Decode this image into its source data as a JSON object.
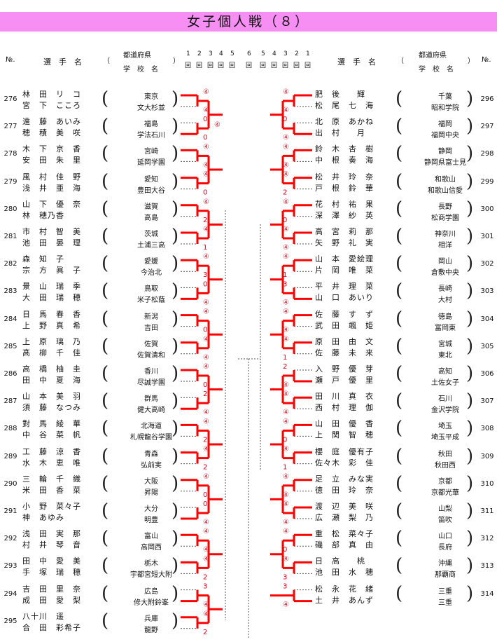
{
  "title": "女子個人戦（８）",
  "header": {
    "no": "№.",
    "name": "選　手　名",
    "paren_open": "（",
    "paren_close": "）",
    "pref": "都道府県",
    "school": "学　校　名",
    "rounds_left": [
      "1",
      "2",
      "3",
      "4",
      "5",
      "6"
    ],
    "rounds_right": [
      "5",
      "4",
      "3",
      "2",
      "1"
    ],
    "round_suffix": "回"
  },
  "left": [
    {
      "no": "276",
      "p1": {
        "name": "林　田　リ　コ",
        "pref": "東京"
      },
      "p2": {
        "name": "宮　下　こころ",
        "school": "文大杉並"
      }
    },
    {
      "no": "277",
      "p1": {
        "name": "遠　藤　あいみ",
        "pref": "福島"
      },
      "p2": {
        "name": "穂　積　美　咲",
        "school": "学法石川"
      }
    },
    {
      "no": "278",
      "p1": {
        "name": "木　下　京　香",
        "pref": "宮崎"
      },
      "p2": {
        "name": "安　田　朱　里",
        "school": "延岡学園"
      }
    },
    {
      "no": "279",
      "p1": {
        "name": "風　村　佳　野",
        "pref": "愛知"
      },
      "p2": {
        "name": "浅　井　亜　海",
        "school": "豊田大谷"
      }
    },
    {
      "no": "280",
      "p1": {
        "name": "山　下　優　奈",
        "pref": "滋賀"
      },
      "p2": {
        "name": "林　穂乃香",
        "school": "高島"
      }
    },
    {
      "no": "281",
      "p1": {
        "name": "市　村　智　美",
        "pref": "茨城"
      },
      "p2": {
        "name": "池　田　晏　理",
        "school": "土浦三高"
      }
    },
    {
      "no": "282",
      "p1": {
        "name": "森　知　子",
        "pref": "愛媛"
      },
      "p2": {
        "name": "宗　方　眞　子",
        "school": "今治北"
      }
    },
    {
      "no": "283",
      "p1": {
        "name": "景　山　瑞　季",
        "pref": "鳥取"
      },
      "p2": {
        "name": "大　田　瑞　穂",
        "school": "米子松蔭"
      }
    },
    {
      "no": "284",
      "p1": {
        "name": "日　馬　春　香",
        "pref": "新潟"
      },
      "p2": {
        "name": "上　野　真　希",
        "school": "吉田"
      }
    },
    {
      "no": "285",
      "p1": {
        "name": "上　原　璃　乃",
        "pref": "佐賀"
      },
      "p2": {
        "name": "髙　柳　千　佳",
        "school": "佐賀清和"
      }
    },
    {
      "no": "286",
      "p1": {
        "name": "高　橋　柚　圭",
        "pref": "香川"
      },
      "p2": {
        "name": "田　中　夏　海",
        "school": "尽誠学園"
      }
    },
    {
      "no": "287",
      "p1": {
        "name": "山　本　美　羽",
        "pref": "群馬"
      },
      "p2": {
        "name": "須　藤　なつみ",
        "school": "健大高崎"
      }
    },
    {
      "no": "288",
      "p1": {
        "name": "對　馬　綾　華",
        "pref": "北海道"
      },
      "p2": {
        "name": "中　谷　菜　帆",
        "school": "札幌龍谷学園"
      }
    },
    {
      "no": "289",
      "p1": {
        "name": "工　藤　涼　香",
        "pref": "青森"
      },
      "p2": {
        "name": "水　木　恵　唯",
        "school": "弘前実"
      }
    },
    {
      "no": "290",
      "p1": {
        "name": "三　輪　千　織",
        "pref": "大阪"
      },
      "p2": {
        "name": "米　田　香　菜",
        "school": "昇陽"
      }
    },
    {
      "no": "291",
      "p1": {
        "name": "小　野　菜々子",
        "pref": "大分"
      },
      "p2": {
        "name": "神　あゆみ",
        "school": "明豊"
      }
    },
    {
      "no": "292",
      "p1": {
        "name": "浅　田　実　那",
        "pref": "富山"
      },
      "p2": {
        "name": "村　井　琴　音",
        "school": "高岡西"
      }
    },
    {
      "no": "293",
      "p1": {
        "name": "田　中　愛　美",
        "pref": "栃木"
      },
      "p2": {
        "name": "手　塚　瑞　穂",
        "school": "宇都宮短大附"
      }
    },
    {
      "no": "294",
      "p1": {
        "name": "吉　田　里　奈",
        "pref": "広島"
      },
      "p2": {
        "name": "成　田　愛　梨",
        "school": "修大附鈴峯"
      }
    },
    {
      "no": "295",
      "p1": {
        "name": "八十川　遥",
        "pref": "兵庫"
      },
      "p2": {
        "name": "合　田　彩希子",
        "school": "龍野"
      }
    }
  ],
  "right": [
    {
      "no": "296",
      "p1": {
        "name": "肥　後　　輝",
        "pref": "千葉"
      },
      "p2": {
        "name": "松　尾　七　海",
        "school": "昭和学院"
      }
    },
    {
      "no": "297",
      "p1": {
        "name": "北　原　あかね",
        "pref": "福岡"
      },
      "p2": {
        "name": "出　村　　月",
        "school": "福岡中央"
      }
    },
    {
      "no": "298",
      "p1": {
        "name": "鈴　木　杏　樹",
        "pref": "静岡"
      },
      "p2": {
        "name": "中　根　奏　海",
        "school": "静岡県富士見"
      }
    },
    {
      "no": "299",
      "p1": {
        "name": "松　井　玲　奈",
        "pref": "和歌山"
      },
      "p2": {
        "name": "戸　根　鈴　華",
        "school": "和歌山信愛"
      }
    },
    {
      "no": "300",
      "p1": {
        "name": "花　村　祐　果",
        "pref": "長野"
      },
      "p2": {
        "name": "深　澤　紗　英",
        "school": "松商学園"
      }
    },
    {
      "no": "301",
      "p1": {
        "name": "高　宮　莉　那",
        "pref": "神奈川"
      },
      "p2": {
        "name": "矢　野　礼　実",
        "school": "相洋"
      }
    },
    {
      "no": "302",
      "p1": {
        "name": "山　本　愛絵理",
        "pref": "岡山"
      },
      "p2": {
        "name": "片　岡　唯　菜",
        "school": "倉敷中央"
      }
    },
    {
      "no": "303",
      "p1": {
        "name": "平　井　理　菜",
        "pref": "長崎"
      },
      "p2": {
        "name": "山　口　あいり",
        "school": "大村"
      }
    },
    {
      "no": "304",
      "p1": {
        "name": "佐　藤　す　ず",
        "pref": "徳島"
      },
      "p2": {
        "name": "武　田　颯　姫",
        "school": "富岡東"
      }
    },
    {
      "no": "305",
      "p1": {
        "name": "原　田　由　文",
        "pref": "宮城"
      },
      "p2": {
        "name": "佐　藤　未　来",
        "school": "東北"
      }
    },
    {
      "no": "306",
      "p1": {
        "name": "入　野　優　芽",
        "pref": "高知"
      },
      "p2": {
        "name": "瀬　戸　優　里",
        "school": "土佐女子"
      }
    },
    {
      "no": "307",
      "p1": {
        "name": "田　川　真　衣",
        "pref": "石川"
      },
      "p2": {
        "name": "西　村　理　伽",
        "school": "金沢学院"
      }
    },
    {
      "no": "308",
      "p1": {
        "name": "山　田　優　香",
        "pref": "埼玉"
      },
      "p2": {
        "name": "上　関　智　穂",
        "school": "埼玉平成"
      }
    },
    {
      "no": "309",
      "p1": {
        "name": "櫻　庭　優有子",
        "pref": "秋田"
      },
      "p2": {
        "name": "佐々木　彩　佳",
        "school": "秋田西"
      }
    },
    {
      "no": "310",
      "p1": {
        "name": "足　立　みな実",
        "pref": "京都"
      },
      "p2": {
        "name": "徳　田　玲　奈",
        "school": "京都光華"
      }
    },
    {
      "no": "311",
      "p1": {
        "name": "渡　辺　美　咲",
        "pref": "山梨"
      },
      "p2": {
        "name": "広　瀬　梨　乃",
        "school": "笛吹"
      }
    },
    {
      "no": "312",
      "p1": {
        "name": "重　松　菜々子",
        "pref": "山口"
      },
      "p2": {
        "name": "磯　部　真　由",
        "school": "長府"
      }
    },
    {
      "no": "313",
      "p1": {
        "name": "日　高　　桃",
        "pref": "沖縄"
      },
      "p2": {
        "name": "池　田　水　穂",
        "school": "那覇商"
      }
    },
    {
      "no": "314",
      "p1": {
        "name": "松　永　花　緒",
        "pref": "三重"
      },
      "p2": {
        "name": "土　井　あんず",
        "school": "三重"
      }
    }
  ],
  "scores": {
    "left": [
      [
        "④",
        "④"
      ],
      [
        "0",
        "0",
        "④"
      ],
      [
        "④",
        "④"
      ],
      [
        "④",
        "0"
      ],
      [
        "④",
        "2"
      ],
      [
        "④",
        "1"
      ],
      [
        "④",
        "3"
      ],
      [
        "0",
        "④"
      ],
      [
        "④",
        "0"
      ],
      [
        "④",
        "④"
      ],
      [
        "④",
        "0"
      ],
      [
        "2",
        "④"
      ],
      [
        "④",
        "2"
      ],
      [
        "④",
        "2"
      ],
      [
        "④",
        "0"
      ],
      [
        "0",
        "④"
      ],
      [
        "④",
        "④"
      ],
      [
        "④",
        "2"
      ],
      [
        "3",
        "④"
      ],
      [
        "④",
        "2"
      ]
    ],
    "right": [
      [
        "④",
        "④"
      ],
      [
        "0",
        "④"
      ],
      [
        "④",
        "④"
      ],
      [
        "④",
        "2"
      ],
      [
        "④",
        "0"
      ],
      [
        "④",
        "④"
      ],
      [
        "④",
        "1"
      ],
      [
        "3",
        "④"
      ],
      [
        "④",
        "④"
      ],
      [
        "④",
        "1"
      ],
      [
        "2",
        "④"
      ],
      [
        "④",
        "④"
      ],
      [
        "④",
        "0"
      ],
      [
        "④",
        "1"
      ],
      [
        "④",
        "④"
      ],
      [
        "④",
        "④"
      ],
      [
        "④",
        "0"
      ],
      [
        "④",
        "3"
      ],
      [
        "3",
        "④"
      ]
    ]
  }
}
